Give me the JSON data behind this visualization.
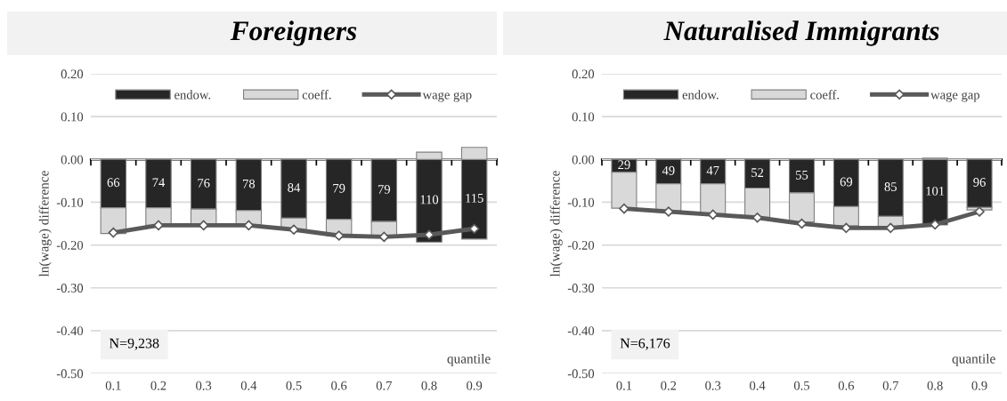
{
  "chart_data": [
    {
      "type": "bar",
      "title": "Foreigners",
      "categories": [
        "0.1",
        "0.2",
        "0.3",
        "0.4",
        "0.5",
        "0.6",
        "0.7",
        "0.8",
        "0.9"
      ],
      "xlabel": "quantile",
      "ylabel": "ln(wage) difference",
      "stacked": true,
      "ylim": [
        -0.5,
        0.2
      ],
      "yticks": [
        {
          "value": -0.5,
          "label": "-0.50"
        },
        {
          "value": -0.4,
          "label": "-0.40"
        },
        {
          "value": -0.3,
          "label": "-0.30"
        },
        {
          "value": -0.2,
          "label": "-0.20"
        },
        {
          "value": -0.1,
          "label": "-0.10"
        },
        {
          "value": 0,
          "label": "0.00"
        },
        {
          "value": 0.1,
          "label": "0.10"
        },
        {
          "value": 0.2,
          "label": "0.20"
        }
      ],
      "grid": "y",
      "legend": "top",
      "annotations": [
        "N=9,238",
        {
          "text": "66",
          "x": "0.1",
          "y": -0.113
        },
        {
          "text": "74",
          "x": "0.2",
          "y": -0.113
        },
        {
          "text": "76",
          "x": "0.3",
          "y": -0.116
        },
        {
          "text": "78",
          "x": "0.4",
          "y": -0.119
        },
        {
          "text": "84",
          "x": "0.5",
          "y": -0.137
        },
        {
          "text": "79",
          "x": "0.6",
          "y": -0.14
        },
        {
          "text": "79",
          "x": "0.7",
          "y": -0.145
        },
        {
          "text": "110",
          "x": "0.8",
          "y": -0.193
        },
        {
          "text": "115",
          "x": "0.9",
          "y": -0.186
        }
      ],
      "series": [
        {
          "name": "endow.",
          "color": "#262626",
          "values": [
            -0.113,
            -0.113,
            -0.116,
            -0.119,
            -0.137,
            -0.14,
            -0.145,
            -0.193,
            -0.186
          ]
        },
        {
          "name": "coeff.",
          "color": "#d9d9d9",
          "values": [
            -0.06,
            -0.041,
            -0.038,
            -0.035,
            -0.027,
            -0.038,
            -0.037,
            0.017,
            0.028
          ]
        },
        {
          "name": "wage gap",
          "type": "line",
          "color": "#595959",
          "marker": "diamond",
          "values": [
            -0.171,
            -0.154,
            -0.154,
            -0.154,
            -0.164,
            -0.178,
            -0.181,
            -0.176,
            -0.162
          ]
        }
      ]
    },
    {
      "type": "bar",
      "title": "Naturalised Immigrants",
      "categories": [
        "0.1",
        "0.2",
        "0.3",
        "0.4",
        "0.5",
        "0.6",
        "0.7",
        "0.8",
        "0.9"
      ],
      "xlabel": "quantile",
      "ylabel": "ln(wage) difference",
      "stacked": true,
      "ylim": [
        -0.5,
        0.2
      ],
      "yticks": [
        {
          "value": -0.5,
          "label": "-0.50"
        },
        {
          "value": -0.4,
          "label": "-0.40"
        },
        {
          "value": -0.3,
          "label": "-0.30"
        },
        {
          "value": -0.2,
          "label": "-0.20"
        },
        {
          "value": -0.1,
          "label": "-0.10"
        },
        {
          "value": 0,
          "label": "0.00"
        },
        {
          "value": 0.1,
          "label": "0.10"
        },
        {
          "value": 0.2,
          "label": "0.20"
        }
      ],
      "grid": "y",
      "legend": "top",
      "annotations": [
        "N=6,176",
        {
          "text": "29",
          "x": "0.1",
          "y": -0.03
        },
        {
          "text": "49",
          "x": "0.2",
          "y": -0.057
        },
        {
          "text": "47",
          "x": "0.3",
          "y": -0.057
        },
        {
          "text": "52",
          "x": "0.4",
          "y": -0.067
        },
        {
          "text": "55",
          "x": "0.5",
          "y": -0.078
        },
        {
          "text": "69",
          "x": "0.6",
          "y": -0.11
        },
        {
          "text": "85",
          "x": "0.7",
          "y": -0.133
        },
        {
          "text": "101",
          "x": "0.8",
          "y": -0.153
        },
        {
          "text": "96",
          "x": "0.9",
          "y": -0.112
        }
      ],
      "series": [
        {
          "name": "endow.",
          "color": "#262626",
          "values": [
            -0.03,
            -0.057,
            -0.057,
            -0.067,
            -0.078,
            -0.11,
            -0.133,
            -0.153,
            -0.112
          ]
        },
        {
          "name": "coeff.",
          "color": "#d9d9d9",
          "values": [
            -0.084,
            -0.063,
            -0.07,
            -0.068,
            -0.068,
            -0.045,
            -0.025,
            0.003,
            -0.006
          ]
        },
        {
          "name": "wage gap",
          "type": "line",
          "color": "#595959",
          "marker": "diamond",
          "values": [
            -0.115,
            -0.122,
            -0.129,
            -0.136,
            -0.15,
            -0.16,
            -0.16,
            -0.152,
            -0.122
          ]
        }
      ]
    }
  ]
}
